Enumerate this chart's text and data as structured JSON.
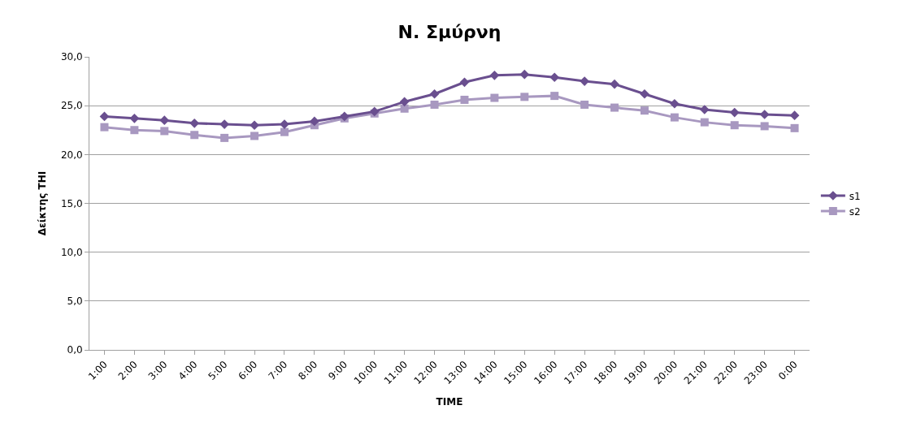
{
  "chart_data": {
    "type": "line",
    "title": "Ν. Σμύρνη",
    "xlabel": "TIME",
    "ylabel": "Δείκτης THI",
    "categories": [
      "1:00",
      "2:00",
      "3:00",
      "4:00",
      "5:00",
      "6:00",
      "7:00",
      "8:00",
      "9:00",
      "10:00",
      "11:00",
      "12:00",
      "13:00",
      "14:00",
      "15:00",
      "16:00",
      "17:00",
      "18:00",
      "19:00",
      "20:00",
      "21:00",
      "22:00",
      "23:00",
      "0:00"
    ],
    "series": [
      {
        "name": "s1",
        "color": "#6a4f8f",
        "marker": "diamond",
        "values": [
          23.9,
          23.7,
          23.5,
          23.2,
          23.1,
          23.0,
          23.1,
          23.4,
          23.9,
          24.4,
          25.4,
          26.2,
          27.4,
          28.1,
          28.2,
          27.9,
          27.5,
          27.2,
          26.2,
          25.2,
          24.6,
          24.3,
          24.1,
          24.0
        ]
      },
      {
        "name": "s2",
        "color": "#a898c0",
        "marker": "square",
        "values": [
          22.8,
          22.5,
          22.4,
          22.0,
          21.7,
          21.9,
          22.3,
          23.0,
          23.7,
          24.2,
          24.7,
          25.1,
          25.6,
          25.8,
          25.9,
          26.0,
          25.1,
          24.8,
          24.5,
          23.8,
          23.3,
          23.0,
          22.9,
          22.7
        ]
      }
    ],
    "ylim": [
      0,
      30
    ],
    "yticks": [
      {
        "value": 0,
        "label": "0,0"
      },
      {
        "value": 5,
        "label": "5,0"
      },
      {
        "value": 10,
        "label": "10,0"
      },
      {
        "value": 15,
        "label": "15,0"
      },
      {
        "value": 20,
        "label": "20,0"
      },
      {
        "value": 25,
        "label": "25,0"
      },
      {
        "value": 30,
        "label": "30,0"
      }
    ],
    "grid": "y",
    "legend": "right"
  }
}
